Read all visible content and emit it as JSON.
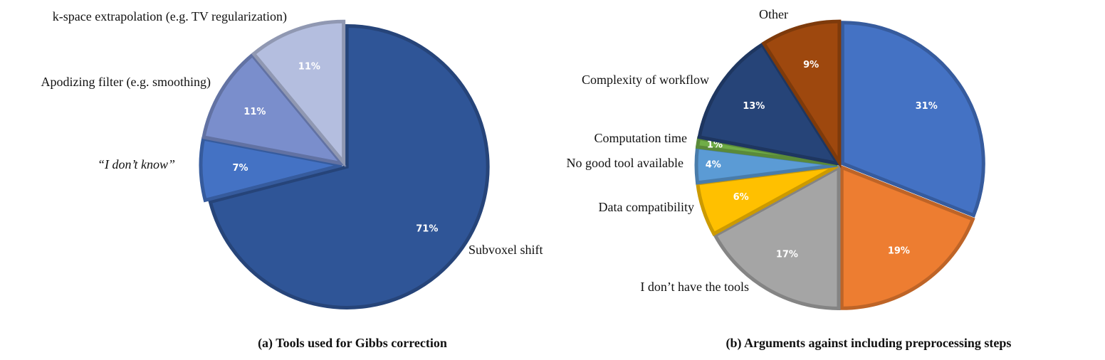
{
  "chart_data": [
    {
      "type": "pie",
      "title": "(a) Tools used for Gibbs correction",
      "categories": [
        "Subvoxel shift",
        "“I don’t know”",
        "Apodizing filter (e.g. smoothing)",
        "k-space extrapolation (e.g. TV regularization)"
      ],
      "values": [
        71,
        7,
        11,
        11
      ],
      "value_labels": [
        "71%",
        "7%",
        "11%",
        "11%"
      ],
      "colors": [
        "#2f5597",
        "#4472c4",
        "#7a8ecc",
        "#b4bedf"
      ]
    },
    {
      "type": "pie",
      "title": "(b) Arguments against including preprocessing steps",
      "categories": [
        null,
        null,
        "I don’t have the tools",
        "Data compatibility",
        "No good tool available",
        "Computation time",
        "Complexity of workflow",
        "Other"
      ],
      "values": [
        31,
        19,
        17,
        6,
        4,
        1,
        13,
        9
      ],
      "value_labels": [
        "31%",
        "19%",
        "17%",
        "6%",
        "4%",
        "1%",
        "13%",
        "9%"
      ],
      "colors": [
        "#4472c4",
        "#ed7d31",
        "#a5a5a5",
        "#ffc000",
        "#5b9bd5",
        "#70ad47",
        "#264478",
        "#9e480e"
      ]
    }
  ]
}
